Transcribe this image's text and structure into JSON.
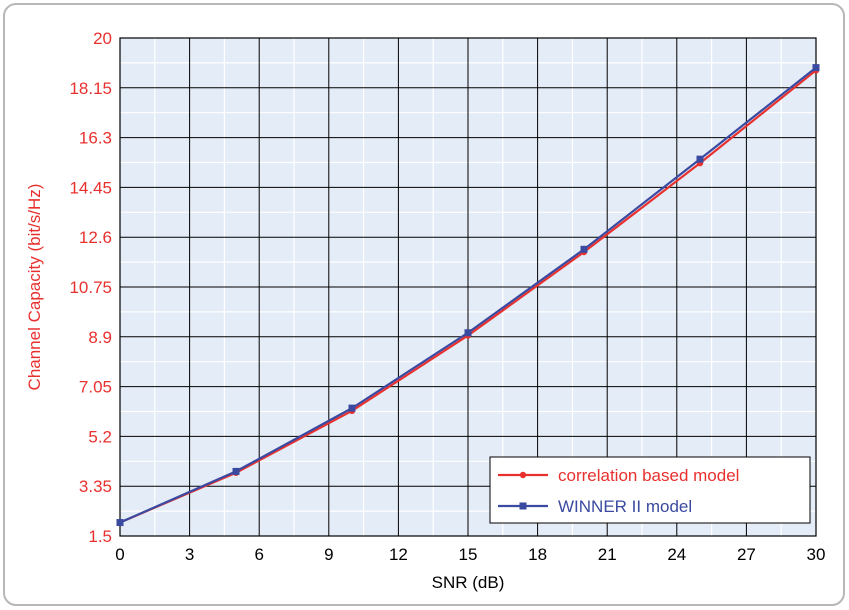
{
  "chart_data": {
    "type": "line",
    "title": "",
    "xlabel": "SNR (dB)",
    "ylabel": "Channel Capacity (bit/s/Hz)",
    "xlim": [
      0,
      30
    ],
    "ylim": [
      1.5,
      20
    ],
    "x_ticks": [
      "0",
      "3",
      "6",
      "9",
      "12",
      "15",
      "18",
      "21",
      "24",
      "27",
      "30"
    ],
    "y_ticks": [
      "1.5",
      "3.35",
      "5.2",
      "7.05",
      "8.9",
      "10.75",
      "12.6",
      "14.45",
      "16.3",
      "18.15",
      "20"
    ],
    "grid": true,
    "legend_position": "bottom-right",
    "series": [
      {
        "name": "correlation based model",
        "color": "#e8312f",
        "marker": "circle",
        "x": [
          0,
          5,
          10,
          15,
          20,
          25,
          30
        ],
        "y": [
          2.0,
          3.85,
          6.15,
          8.95,
          12.05,
          15.35,
          18.8
        ]
      },
      {
        "name": "WINNER II model",
        "color": "#3a4aa0",
        "marker": "square",
        "x": [
          0,
          5,
          10,
          15,
          20,
          25,
          30
        ],
        "y": [
          2.0,
          3.9,
          6.25,
          9.05,
          12.15,
          15.5,
          18.9
        ]
      }
    ],
    "colors": {
      "ytick": "#e8312f",
      "ylabel": "#e8312f",
      "xtick": "#000000",
      "xlabel": "#000000"
    }
  }
}
